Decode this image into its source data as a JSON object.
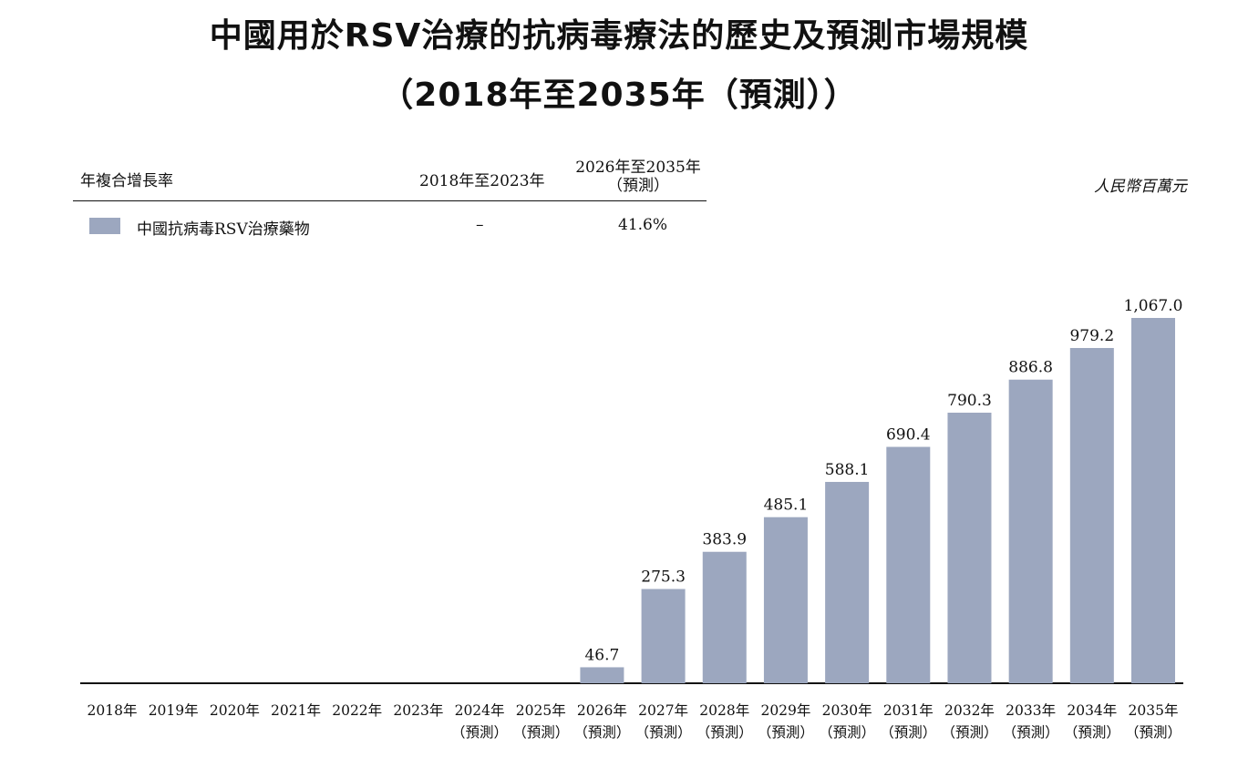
{
  "title_line1": "中國用於RSV治療的抗病毒療法的歷史及預測市場規模",
  "title_line2": "（2018年至2035年（預測））",
  "cagr_table": {
    "header_label": "年複合增長率",
    "col1_header": "2018年至2023年",
    "col2_header_line1": "2026年至2035年",
    "col2_header_line2": "（預測）",
    "series_name": "中國抗病毒RSV治療藥物",
    "col1_value": "–",
    "col2_value": "41.6%"
  },
  "unit": "人民幣百萬元",
  "colors": {
    "bar": "#9ca7bf"
  },
  "chart_data": {
    "type": "bar",
    "categories": [
      "2018年",
      "2019年",
      "2020年",
      "2021年",
      "2022年",
      "2023年",
      "2024年\n（預測）",
      "2025年\n（預測）",
      "2026年\n（預測）",
      "2027年\n（預測）",
      "2028年\n（預測）",
      "2029年\n（預測）",
      "2030年\n（預測）",
      "2031年\n（預測）",
      "2032年\n（預測）",
      "2033年\n（預測）",
      "2034年\n（預測）",
      "2035年\n（預測）"
    ],
    "series": [
      {
        "name": "中國抗病毒RSV治療藥物",
        "values": [
          null,
          null,
          null,
          null,
          null,
          null,
          null,
          null,
          46.7,
          275.3,
          383.9,
          485.1,
          588.1,
          690.4,
          790.3,
          886.8,
          979.2,
          1067.0
        ],
        "labels": [
          "",
          "",
          "",
          "",
          "",
          "",
          "",
          "",
          "46.7",
          "275.3",
          "383.9",
          "485.1",
          "588.1",
          "690.4",
          "790.3",
          "886.8",
          "979.2",
          "1,067.0"
        ]
      }
    ],
    "ylim": [
      0,
      1067.0
    ],
    "grid": false,
    "legend": "top-left"
  }
}
